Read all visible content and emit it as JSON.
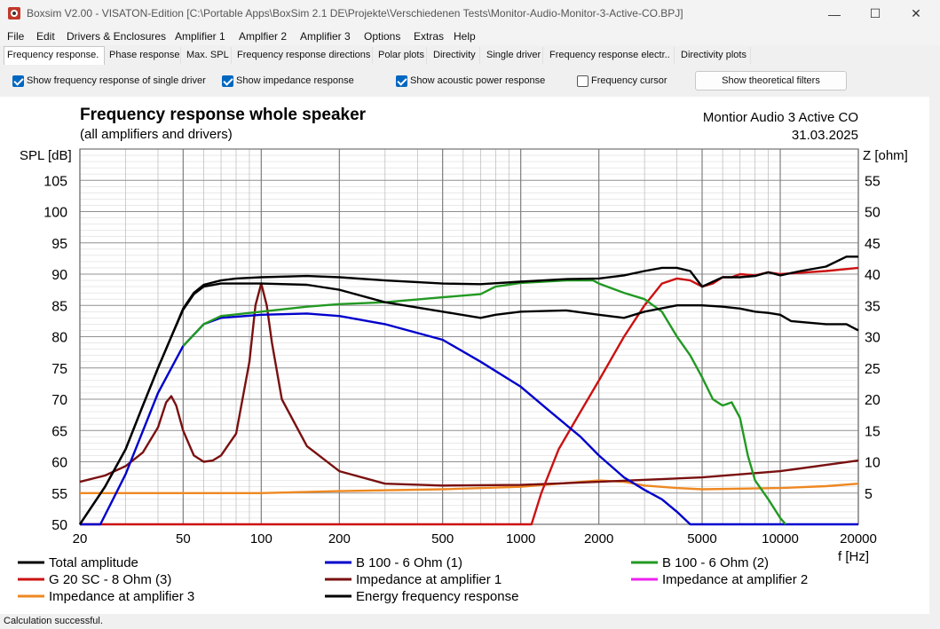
{
  "window": {
    "title": "Boxsim V2.00 - VISATON-Edition [C:\\Portable Apps\\BoxSim 2.1 DE\\Projekte\\Verschiedenen Tests\\Monitor-Audio-Monitor-3-Active-CO.BPJ]",
    "minimize_glyph": "—",
    "maximize_glyph": "☐",
    "close_glyph": "✕"
  },
  "menu": [
    "File",
    "Edit",
    "Drivers & Enclosures",
    "Amplifier 1",
    "Amplfier 2",
    "Amplifier 3",
    "Options",
    "Extras",
    "Help"
  ],
  "tabs": [
    "Frequency response.",
    "Phase response",
    "Max. SPL",
    "Frequency response directions",
    "Polar plots",
    "Directivity",
    "Single driver",
    "Frequency response electr..",
    "Directivity plots"
  ],
  "active_tab": "Frequency response.",
  "options": {
    "single_driver": {
      "label": "Show frequency response of single driver",
      "checked": true
    },
    "impedance": {
      "label": "Show impedance response",
      "checked": true
    },
    "acoustic_power": {
      "label": "Show acoustic power response",
      "checked": true
    },
    "cursor": {
      "label": "Frequency cursor",
      "checked": false
    },
    "filters_button": "Show theoretical filters"
  },
  "status": "Calculation successful.",
  "chart_data": {
    "type": "line",
    "title": "Frequency response whole speaker",
    "subtitle": "(all amplifiers and drivers)",
    "project": "Montior Audio 3 Active CO",
    "date": "31.03.2025",
    "ylabel": "SPL [dB]",
    "y2label": "Z [ohm]",
    "xlabel": "f [Hz]",
    "xscale": "log",
    "xlim": [
      20,
      20000
    ],
    "ylim": [
      50,
      110
    ],
    "y2lim": [
      0,
      60
    ],
    "xticks": [
      "20",
      "50",
      "100",
      "200",
      "500",
      "1000",
      "2000",
      "5000",
      "10000",
      "20000"
    ],
    "yticks": [
      "50",
      "55",
      "60",
      "65",
      "70",
      "75",
      "80",
      "85",
      "90",
      "95",
      "100",
      "105"
    ],
    "y2ticks": [
      "5",
      "10",
      "15",
      "20",
      "25",
      "30",
      "35",
      "40",
      "45",
      "50",
      "55"
    ],
    "grid": true,
    "legend_position": "bottom",
    "series": [
      {
        "name": "Total amplitude",
        "color": "#000000",
        "axis": "left",
        "x": [
          20,
          25,
          30,
          35,
          40,
          45,
          50,
          55,
          60,
          70,
          80,
          100,
          150,
          200,
          300,
          500,
          700,
          1000,
          1500,
          2000,
          2500,
          3000,
          3500,
          4000,
          4500,
          5000,
          6000,
          7000,
          8000,
          9000,
          10000,
          12000,
          15000,
          18000,
          20000
        ],
        "y": [
          50,
          56,
          62,
          69,
          75,
          80,
          84.5,
          87,
          88.3,
          89,
          89.3,
          89.5,
          89.7,
          89.5,
          89,
          88.5,
          88.4,
          88.8,
          89.2,
          89.3,
          89.8,
          90.5,
          91,
          91,
          90.5,
          88,
          89.5,
          89.5,
          89.7,
          90.3,
          89.8,
          90.5,
          91.2,
          92.8,
          92.8
        ]
      },
      {
        "name": "B 100 - 6 Ohm (1)",
        "color": "#0000cc",
        "axis": "left",
        "x": [
          20,
          24,
          30,
          40,
          50,
          60,
          70,
          100,
          150,
          200,
          300,
          500,
          700,
          1000,
          1300,
          1700,
          2000,
          2500,
          3000,
          3500,
          4000,
          4500,
          5000,
          6000,
          10000,
          20000
        ],
        "y": [
          50,
          50,
          58,
          71,
          78.5,
          82,
          83,
          83.5,
          83.7,
          83.3,
          82,
          79.5,
          76,
          72,
          68,
          64,
          61,
          57.5,
          55.5,
          54,
          52,
          50,
          50,
          50,
          50,
          50
        ]
      },
      {
        "name": "B 100 - 6 Ohm (2)",
        "color": "#229922",
        "axis": "left",
        "x": [
          50,
          60,
          70,
          100,
          150,
          200,
          300,
          500,
          700,
          800,
          1000,
          1500,
          1900,
          2000,
          2500,
          3000,
          3500,
          4000,
          4500,
          5000,
          5500,
          6000,
          6500,
          7000,
          7500,
          8000,
          9000,
          10000,
          10500
        ],
        "y": [
          78.5,
          82,
          83.3,
          84,
          84.8,
          85.2,
          85.5,
          86.3,
          86.8,
          88,
          88.6,
          89,
          89,
          88.5,
          87,
          86,
          84,
          80,
          77,
          73.5,
          70,
          69,
          69.5,
          67,
          61,
          57,
          54,
          51,
          50
        ]
      },
      {
        "name": "G 20 SC - 8 Ohm (3)",
        "color": "#cc1111",
        "axis": "left",
        "x": [
          20,
          1100,
          1200,
          1400,
          1700,
          2000,
          2500,
          3000,
          3500,
          4000,
          4500,
          5000,
          5500,
          6000,
          6500,
          7000,
          8000,
          9000,
          10000,
          15000,
          20000
        ],
        "y": [
          50,
          50,
          55,
          62,
          68,
          73,
          80,
          85,
          88.5,
          89.3,
          89,
          88,
          88.5,
          89.5,
          89.5,
          90,
          89.8,
          90.3,
          90,
          90.5,
          91
        ]
      },
      {
        "name": "Impedance at amplifier 1",
        "color": "#7a1010",
        "axis": "right",
        "x": [
          20,
          25,
          30,
          35,
          40,
          43,
          45,
          47,
          50,
          55,
          60,
          65,
          70,
          80,
          90,
          95,
          100,
          105,
          110,
          120,
          150,
          200,
          300,
          500,
          1000,
          2000,
          5000,
          10000,
          20000
        ],
        "y": [
          6.8,
          7.8,
          9.3,
          11.5,
          15.5,
          19.5,
          20.5,
          19,
          15,
          11,
          10,
          10.2,
          11,
          14.5,
          26,
          35,
          38.5,
          35,
          29,
          20,
          12.5,
          8.5,
          6.5,
          6.2,
          6.3,
          6.8,
          7.5,
          8.5,
          10.2
        ]
      },
      {
        "name": "Impedance at amplifier 2",
        "color": "#ee22ee",
        "axis": "right",
        "x": [],
        "y": []
      },
      {
        "name": "Impedance at amplifier 3",
        "color": "#ee8822",
        "axis": "right",
        "x": [
          20,
          100,
          200,
          500,
          1000,
          1500,
          2000,
          2500,
          3000,
          4000,
          5000,
          7000,
          10000,
          15000,
          20000
        ],
        "y": [
          5,
          5,
          5.3,
          5.6,
          6,
          6.6,
          7,
          6.8,
          6.2,
          5.8,
          5.6,
          5.7,
          5.8,
          6.1,
          6.5
        ]
      },
      {
        "name": "Energy frequency response",
        "color": "#000000",
        "axis": "left",
        "x": [
          20,
          25,
          30,
          35,
          40,
          45,
          50,
          55,
          60,
          70,
          80,
          100,
          150,
          200,
          300,
          500,
          700,
          800,
          1000,
          1500,
          2000,
          2500,
          3000,
          4000,
          5000,
          6000,
          7000,
          8000,
          9000,
          10000,
          11000,
          15000,
          18000,
          20000
        ],
        "y": [
          50,
          56,
          62,
          69,
          75,
          80,
          84.3,
          86.8,
          88,
          88.5,
          88.5,
          88.5,
          88.3,
          87.5,
          85.5,
          84,
          83,
          83.5,
          84,
          84.2,
          83.5,
          83,
          84,
          85,
          85,
          84.8,
          84.5,
          84,
          83.8,
          83.5,
          82.5,
          82,
          82,
          81
        ]
      }
    ]
  }
}
